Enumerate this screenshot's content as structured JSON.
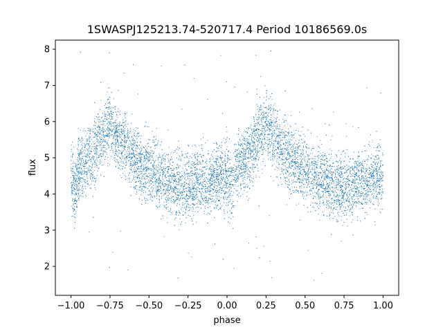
{
  "chart_data": {
    "type": "scatter",
    "title": "1SWASPJ125213.74-520717.4 Period 10186569.0s",
    "xlabel": "phase",
    "ylabel": "flux",
    "xlim": [
      -1.1,
      1.1
    ],
    "ylim": [
      1.2,
      8.25
    ],
    "x_ticks": [
      -1.0,
      -0.75,
      -0.5,
      -0.25,
      0.0,
      0.25,
      0.5,
      0.75,
      1.0
    ],
    "x_tick_labels": [
      "−1.00",
      "−0.75",
      "−0.50",
      "−0.25",
      "0.00",
      "0.25",
      "0.50",
      "0.75",
      "1.00"
    ],
    "y_ticks": [
      2,
      3,
      4,
      5,
      6,
      7,
      8
    ],
    "y_tick_labels": [
      "2",
      "3",
      "4",
      "5",
      "6",
      "7",
      "8"
    ],
    "grid": false,
    "series": [
      {
        "color": "#1f77b4",
        "marker": "point",
        "trend": {
          "x": [
            -1.0,
            -0.97,
            -0.95,
            -0.9,
            -0.85,
            -0.8,
            -0.75,
            -0.7,
            -0.65,
            -0.6,
            -0.55,
            -0.5,
            -0.45,
            -0.4,
            -0.35,
            -0.3,
            -0.25,
            -0.2,
            -0.15,
            -0.1,
            -0.05,
            0.0,
            0.03,
            0.05,
            0.1,
            0.15,
            0.2,
            0.25,
            0.3,
            0.35,
            0.4,
            0.45,
            0.5,
            0.55,
            0.6,
            0.65,
            0.7,
            0.75,
            0.8,
            0.85,
            0.9,
            0.95,
            1.0
          ],
          "y": [
            4.5,
            4.1,
            4.7,
            4.9,
            5.1,
            5.6,
            5.9,
            5.6,
            5.3,
            5.0,
            4.8,
            4.7,
            4.5,
            4.4,
            4.3,
            4.2,
            4.3,
            4.3,
            4.3,
            4.4,
            4.5,
            4.5,
            4.1,
            4.7,
            4.9,
            5.1,
            5.6,
            5.9,
            5.6,
            5.3,
            5.0,
            4.8,
            4.7,
            4.5,
            4.4,
            4.3,
            4.2,
            4.3,
            4.3,
            4.3,
            4.4,
            4.5,
            4.5
          ]
        },
        "scatter_band_halfwidth": 0.45,
        "n_points": 9000,
        "outliers_range": [
          1.5,
          8.0
        ]
      }
    ]
  }
}
